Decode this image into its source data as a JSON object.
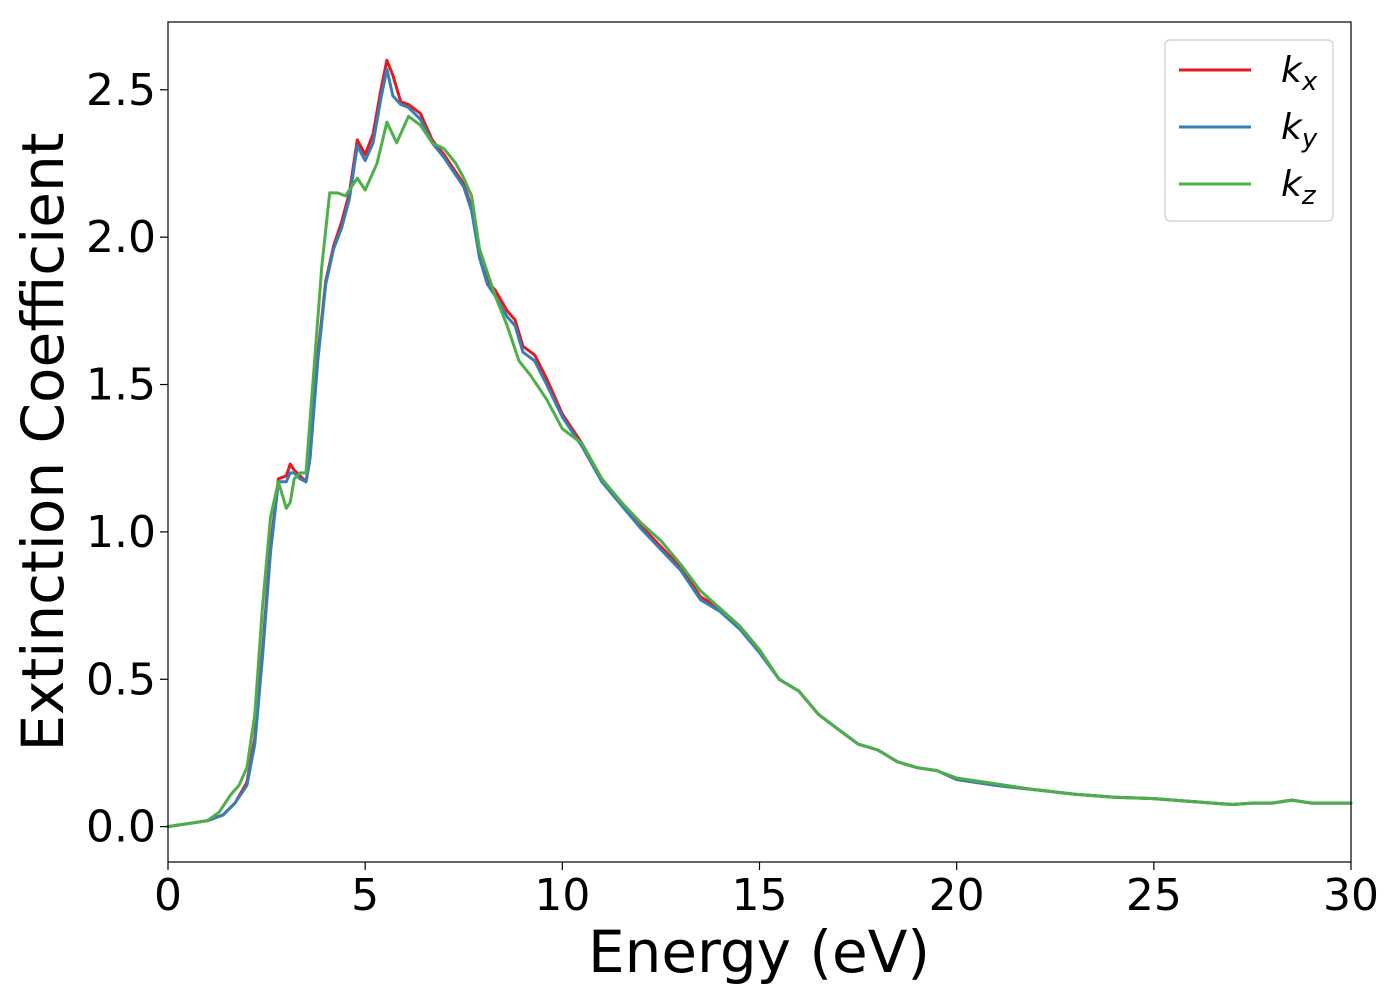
{
  "chart_data": {
    "type": "line",
    "xlabel": "Energy (eV)",
    "ylabel": "Extinction Coefficient",
    "xlim": [
      0,
      30
    ],
    "ylim": [
      -0.12,
      2.73
    ],
    "xticks": [
      0,
      5,
      10,
      15,
      20,
      25,
      30
    ],
    "xtick_labels": [
      "0",
      "5",
      "10",
      "15",
      "20",
      "25",
      "30"
    ],
    "yticks": [
      0.0,
      0.5,
      1.0,
      1.5,
      2.0,
      2.5
    ],
    "ytick_labels": [
      "0.0",
      "0.5",
      "1.0",
      "1.5",
      "2.0",
      "2.5"
    ],
    "grid": false,
    "legend_position": "top-right",
    "series": [
      {
        "name": "kx",
        "legend_base": "k",
        "legend_sub": "x",
        "color": "#e41a1c",
        "x": [
          0,
          0.5,
          1,
          1.4,
          1.7,
          2,
          2.2,
          2.4,
          2.6,
          2.8,
          3,
          3.1,
          3.2,
          3.35,
          3.5,
          3.6,
          3.8,
          4,
          4.2,
          4.4,
          4.6,
          4.8,
          5,
          5.2,
          5.4,
          5.55,
          5.7,
          5.9,
          6.1,
          6.4,
          6.7,
          7,
          7.3,
          7.5,
          7.7,
          7.9,
          8.1,
          8.3,
          8.6,
          8.8,
          9,
          9.3,
          9.6,
          10,
          10.5,
          11,
          11.5,
          12,
          12.5,
          13,
          13.5,
          14,
          14.5,
          15,
          15.5,
          16,
          16.5,
          17,
          17.5,
          18,
          18.5,
          19,
          19.5,
          20,
          21,
          22,
          23,
          24,
          25,
          26,
          26.5,
          27,
          27.5,
          28,
          28.5,
          29,
          30
        ],
        "values": [
          0,
          0.01,
          0.02,
          0.04,
          0.08,
          0.15,
          0.3,
          0.6,
          0.95,
          1.18,
          1.19,
          1.23,
          1.21,
          1.19,
          1.17,
          1.25,
          1.6,
          1.85,
          1.97,
          2.05,
          2.15,
          2.33,
          2.28,
          2.35,
          2.5,
          2.6,
          2.55,
          2.46,
          2.45,
          2.42,
          2.33,
          2.28,
          2.22,
          2.18,
          2.1,
          1.95,
          1.85,
          1.82,
          1.75,
          1.72,
          1.63,
          1.6,
          1.52,
          1.4,
          1.3,
          1.18,
          1.1,
          1.02,
          0.95,
          0.88,
          0.78,
          0.74,
          0.68,
          0.6,
          0.5,
          0.46,
          0.38,
          0.33,
          0.28,
          0.26,
          0.22,
          0.2,
          0.19,
          0.16,
          0.14,
          0.125,
          0.11,
          0.1,
          0.095,
          0.085,
          0.08,
          0.075,
          0.08,
          0.08,
          0.09,
          0.08,
          0.08
        ]
      },
      {
        "name": "ky",
        "legend_base": "k",
        "legend_sub": "y",
        "color": "#377eb8",
        "x": [
          0,
          0.5,
          1,
          1.4,
          1.7,
          2,
          2.2,
          2.4,
          2.6,
          2.8,
          3,
          3.1,
          3.2,
          3.35,
          3.5,
          3.6,
          3.8,
          4,
          4.2,
          4.4,
          4.6,
          4.8,
          5,
          5.2,
          5.4,
          5.55,
          5.7,
          5.9,
          6.1,
          6.4,
          6.7,
          7,
          7.3,
          7.5,
          7.7,
          7.9,
          8.1,
          8.3,
          8.6,
          8.8,
          9,
          9.3,
          9.6,
          10,
          10.5,
          11,
          11.5,
          12,
          12.5,
          13,
          13.5,
          14,
          14.5,
          15,
          15.5,
          16,
          16.5,
          17,
          17.5,
          18,
          18.5,
          19,
          19.5,
          20,
          21,
          22,
          23,
          24,
          25,
          26,
          26.5,
          27,
          27.5,
          28,
          28.5,
          29,
          30
        ],
        "values": [
          0,
          0.01,
          0.02,
          0.04,
          0.08,
          0.14,
          0.28,
          0.58,
          0.93,
          1.17,
          1.17,
          1.2,
          1.2,
          1.18,
          1.17,
          1.25,
          1.58,
          1.84,
          1.96,
          2.03,
          2.13,
          2.31,
          2.26,
          2.32,
          2.47,
          2.57,
          2.48,
          2.45,
          2.44,
          2.4,
          2.32,
          2.27,
          2.21,
          2.17,
          2.09,
          1.93,
          1.84,
          1.8,
          1.73,
          1.7,
          1.61,
          1.58,
          1.5,
          1.39,
          1.29,
          1.17,
          1.09,
          1.01,
          0.94,
          0.87,
          0.77,
          0.73,
          0.67,
          0.59,
          0.5,
          0.46,
          0.38,
          0.33,
          0.28,
          0.26,
          0.22,
          0.2,
          0.19,
          0.16,
          0.14,
          0.125,
          0.11,
          0.1,
          0.095,
          0.085,
          0.08,
          0.075,
          0.08,
          0.08,
          0.09,
          0.08,
          0.08
        ]
      },
      {
        "name": "kz",
        "legend_base": "k",
        "legend_sub": "z",
        "color": "#4daf4a",
        "x": [
          0,
          0.5,
          1,
          1.3,
          1.6,
          1.8,
          2,
          2.2,
          2.4,
          2.6,
          2.8,
          3,
          3.1,
          3.2,
          3.35,
          3.5,
          3.7,
          3.9,
          4.1,
          4.3,
          4.5,
          4.8,
          5,
          5.3,
          5.55,
          5.8,
          6.1,
          6.4,
          6.7,
          7,
          7.3,
          7.5,
          7.7,
          7.9,
          8.1,
          8.3,
          8.6,
          8.9,
          9.2,
          9.6,
          10,
          10.5,
          11,
          11.5,
          12,
          12.5,
          13,
          13.5,
          14,
          14.5,
          15,
          15.5,
          16,
          16.5,
          17,
          17.5,
          18,
          18.5,
          19,
          19.5,
          20,
          21,
          22,
          23,
          24,
          25,
          26,
          26.5,
          27,
          27.5,
          28,
          28.5,
          29,
          30
        ],
        "values": [
          0,
          0.01,
          0.02,
          0.05,
          0.11,
          0.14,
          0.2,
          0.38,
          0.75,
          1.05,
          1.17,
          1.08,
          1.1,
          1.18,
          1.2,
          1.2,
          1.55,
          1.9,
          2.15,
          2.15,
          2.14,
          2.2,
          2.16,
          2.25,
          2.39,
          2.32,
          2.41,
          2.38,
          2.32,
          2.3,
          2.25,
          2.2,
          2.14,
          1.96,
          1.88,
          1.8,
          1.7,
          1.58,
          1.53,
          1.45,
          1.35,
          1.3,
          1.18,
          1.1,
          1.03,
          0.97,
          0.89,
          0.8,
          0.74,
          0.68,
          0.6,
          0.5,
          0.46,
          0.38,
          0.33,
          0.28,
          0.26,
          0.22,
          0.2,
          0.19,
          0.165,
          0.145,
          0.125,
          0.11,
          0.1,
          0.095,
          0.085,
          0.08,
          0.075,
          0.08,
          0.08,
          0.09,
          0.08,
          0.08
        ]
      }
    ]
  }
}
